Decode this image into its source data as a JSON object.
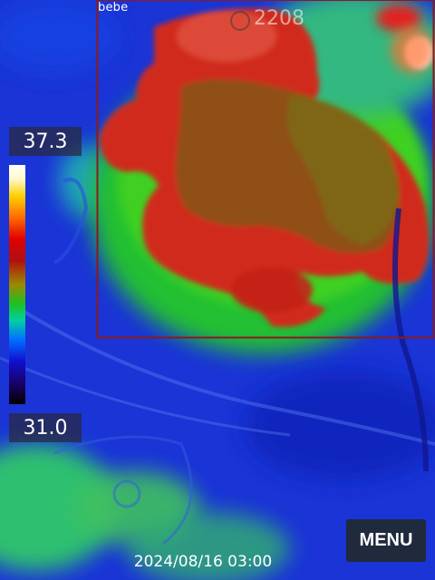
{
  "roi": {
    "label": "bebe",
    "id": "2208",
    "border_color": "#8b1a1a"
  },
  "scale": {
    "max": "37.3",
    "min": "31.0"
  },
  "menu": {
    "label": "MENU"
  },
  "timestamp": "2024/08/16 03:00",
  "colors": {
    "hot": "#d82a1a",
    "warm": "#9a4a1a",
    "mid": "#2ecc40",
    "cool": "#1a2fd0",
    "panel": "#1f2a3d"
  }
}
